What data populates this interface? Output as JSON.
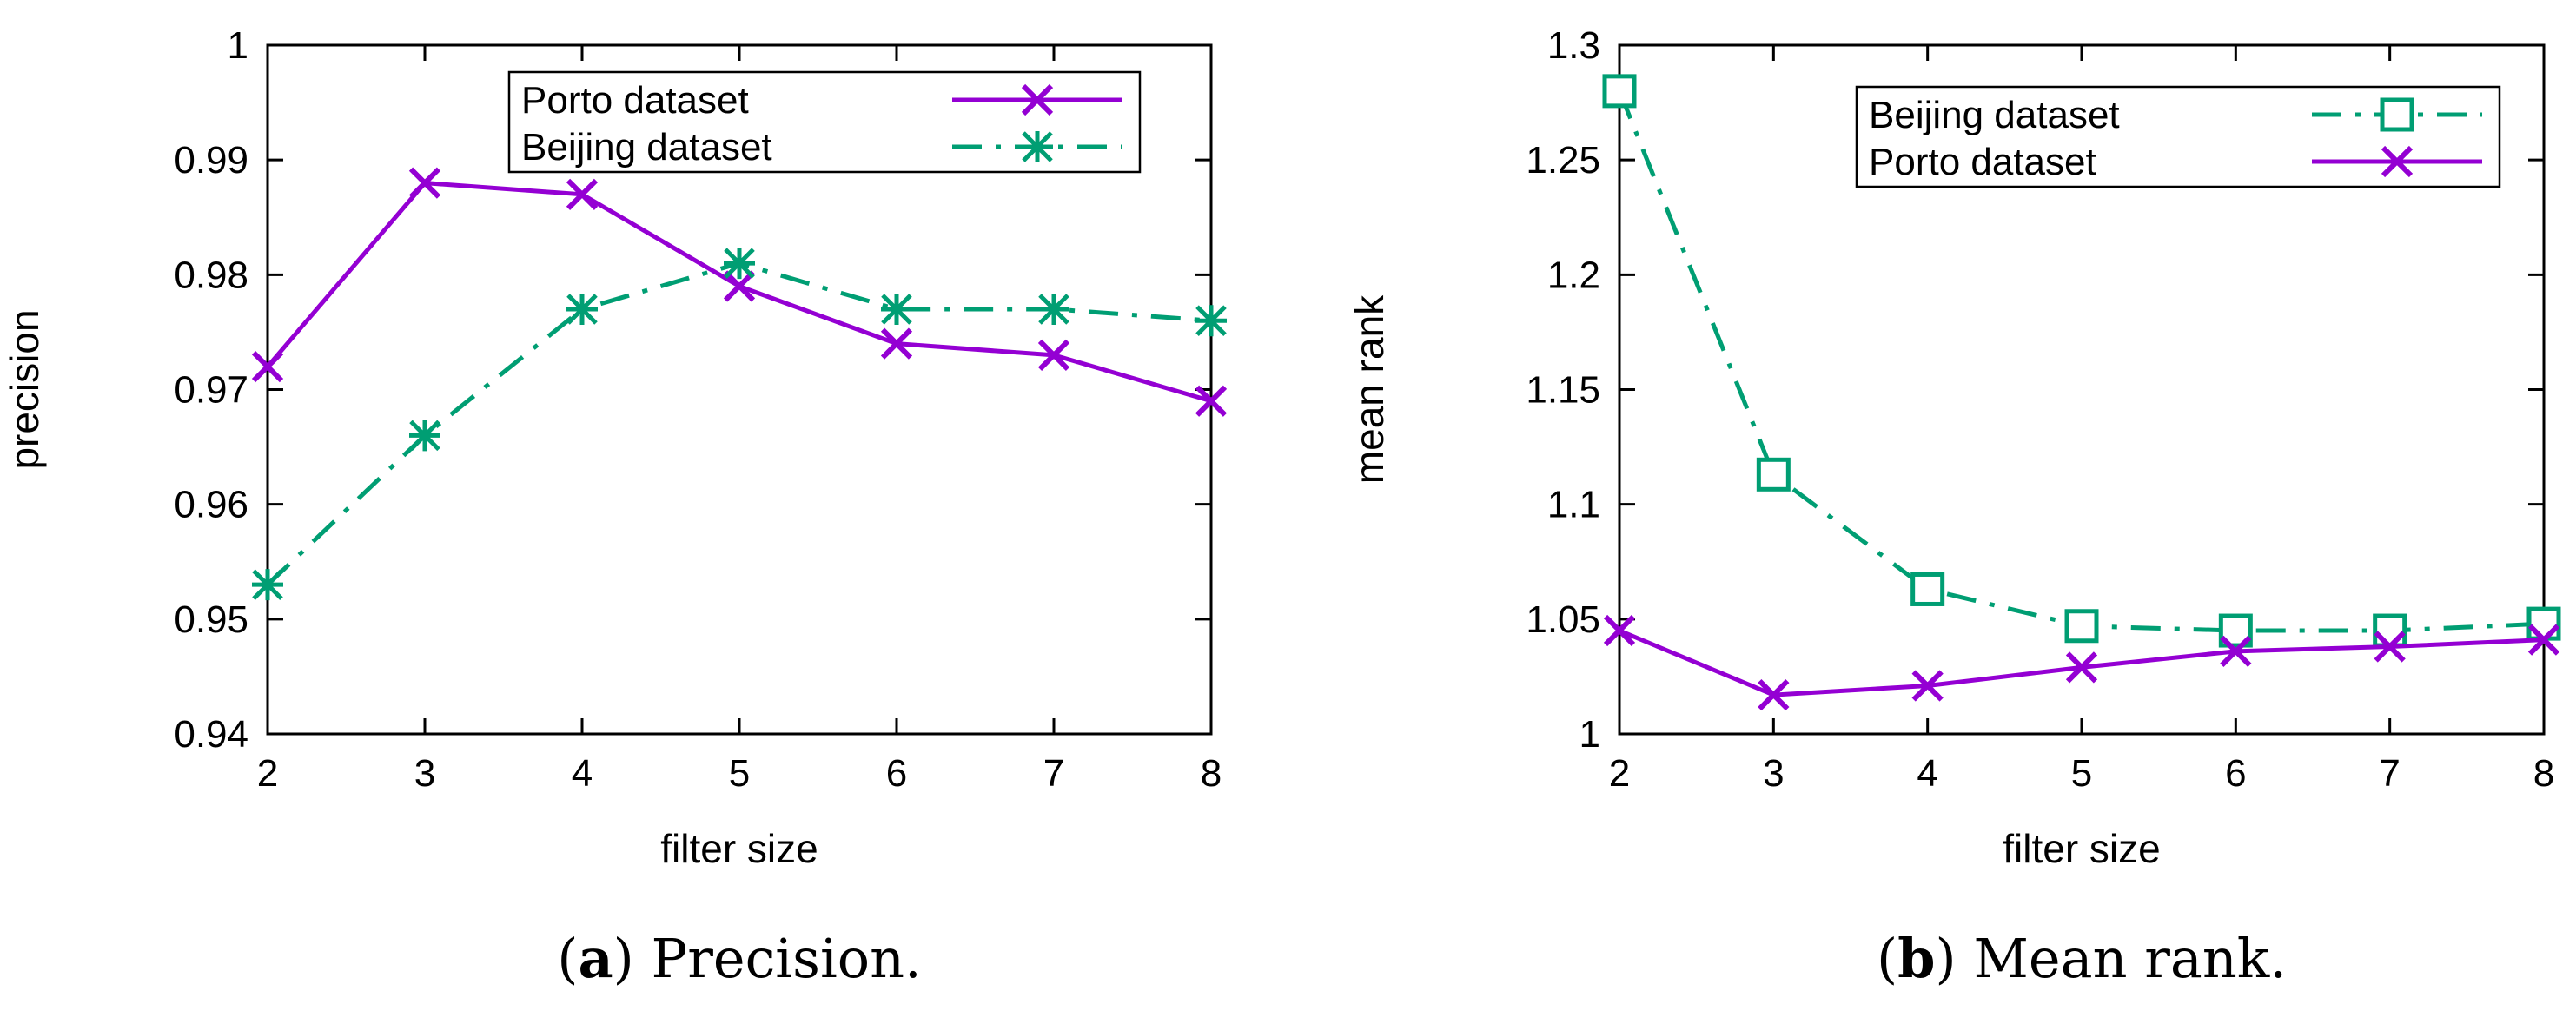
{
  "chart_data": [
    {
      "type": "line",
      "caption": {
        "open": "(",
        "letter": "a",
        "close": ")",
        "text": " Precision."
      },
      "xlabel": "filter size",
      "ylabel": "precision",
      "xlim": [
        2,
        8
      ],
      "ylim": [
        0.94,
        1
      ],
      "x_ticks": [
        "2",
        "3",
        "4",
        "5",
        "6",
        "7",
        "8"
      ],
      "y_ticks": [
        "0.94",
        "0.95",
        "0.96",
        "0.97",
        "0.98",
        "0.99",
        "1"
      ],
      "legend_position": "top-right",
      "x": [
        2,
        3,
        4,
        5,
        6,
        7,
        8
      ],
      "series": [
        {
          "name": "Porto dataset",
          "values": [
            0.972,
            0.988,
            0.987,
            0.979,
            0.974,
            0.973,
            0.969
          ],
          "color": "#9400D3",
          "marker": "x",
          "dash": "solid"
        },
        {
          "name": "Beijing dataset",
          "values": [
            0.953,
            0.966,
            0.977,
            0.981,
            0.977,
            0.977,
            0.976
          ],
          "color": "#009E73",
          "marker": "star",
          "dash": "dashdot"
        }
      ]
    },
    {
      "type": "line",
      "caption": {
        "open": "(",
        "letter": "b",
        "close": ")",
        "text": " Mean rank."
      },
      "xlabel": "filter size",
      "ylabel": "mean rank",
      "xlim": [
        2,
        8
      ],
      "ylim": [
        1,
        1.3
      ],
      "x_ticks": [
        "2",
        "3",
        "4",
        "5",
        "6",
        "7",
        "8"
      ],
      "y_ticks": [
        "1",
        "1.05",
        "1.1",
        "1.15",
        "1.2",
        "1.25",
        "1.3"
      ],
      "legend_position": "top-right",
      "x": [
        2,
        3,
        4,
        5,
        6,
        7,
        8
      ],
      "series": [
        {
          "name": "Beijing dataset",
          "values": [
            1.28,
            1.113,
            1.063,
            1.047,
            1.045,
            1.045,
            1.048
          ],
          "color": "#009E73",
          "marker": "square",
          "dash": "dashdot"
        },
        {
          "name": "Porto dataset",
          "values": [
            1.045,
            1.017,
            1.021,
            1.029,
            1.036,
            1.038,
            1.041
          ],
          "color": "#9400D3",
          "marker": "x",
          "dash": "solid"
        }
      ]
    }
  ]
}
